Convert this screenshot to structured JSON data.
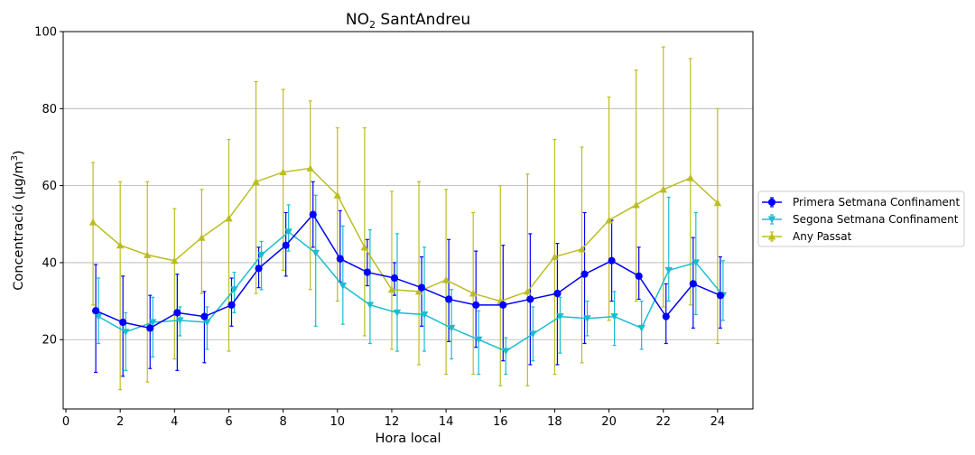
{
  "chart_data": {
    "type": "line",
    "title": "NO",
    "title_subscript": "2",
    "title_suffix": " SantAndreu",
    "xlabel": "Hora local",
    "ylabel": "Concentració (µg/m",
    "ylabel_superscript": "3",
    "ylabel_suffix": ")",
    "xlim": [
      -0.1,
      25.3
    ],
    "ylim": [
      2,
      100
    ],
    "xticks": [
      0,
      2,
      4,
      6,
      8,
      10,
      12,
      14,
      16,
      18,
      20,
      22,
      24
    ],
    "xtick_labels": [
      "0",
      "2",
      "4",
      "6",
      "8",
      "10",
      "12",
      "14",
      "16",
      "18",
      "20",
      "22",
      "24"
    ],
    "yticks": [
      20,
      40,
      60,
      80,
      100
    ],
    "ytick_labels": [
      "20",
      "40",
      "60",
      "80",
      "100"
    ],
    "grid": "horizontal",
    "legend_position": "outside-right",
    "x": [
      1,
      2,
      3,
      4,
      5,
      6,
      7,
      8,
      9,
      10,
      11,
      12,
      13,
      14,
      15,
      16,
      17,
      18,
      19,
      20,
      21,
      22,
      23,
      24
    ],
    "series": [
      {
        "name": "Primera Setmana Confinament",
        "color": "#0000ff",
        "marker": "circle",
        "x_offset": 0.1,
        "values": [
          27.5,
          24.5,
          23,
          27,
          26,
          29,
          38.5,
          44.5,
          52.5,
          41,
          37.5,
          36,
          33.5,
          30.5,
          29,
          29,
          30.5,
          32,
          37,
          40.5,
          36.5,
          26,
          34.5,
          31.5
        ],
        "err_low": [
          11.5,
          10.5,
          12.5,
          12,
          14,
          23.5,
          33.5,
          36.5,
          44,
          35,
          34,
          31.5,
          23.5,
          19.5,
          18,
          14.5,
          13.5,
          13.5,
          19,
          30,
          30.5,
          19,
          23,
          23
        ],
        "err_high": [
          39.5,
          36.5,
          31.5,
          37,
          32.5,
          36,
          44,
          53,
          61,
          53.5,
          46,
          40,
          41.5,
          46,
          43,
          44.5,
          47.5,
          45,
          53,
          51,
          44,
          34.5,
          46.5,
          41.5
        ]
      },
      {
        "name": "Segona Setmana Confinament",
        "color": "#17becf",
        "marker": "triangle-down",
        "x_offset": 0.2,
        "values": [
          26,
          22,
          24.5,
          25,
          24.5,
          33,
          42,
          48,
          42.5,
          34,
          29,
          27,
          26.5,
          23,
          20,
          17,
          21.5,
          26,
          25.5,
          26,
          23,
          38,
          40,
          31.5
        ],
        "err_low": [
          19,
          12,
          15.5,
          21,
          17.5,
          27,
          33,
          43,
          23.5,
          24,
          19,
          17,
          17,
          15,
          11,
          11,
          14.5,
          16.5,
          21,
          18.5,
          17.5,
          30,
          26.5,
          25
        ],
        "err_high": [
          36,
          27,
          31,
          28.5,
          28.5,
          37.5,
          45.5,
          55,
          57.5,
          49.5,
          48.5,
          47.5,
          44,
          33,
          27.5,
          20.5,
          28.5,
          31,
          30,
          32.5,
          30,
          57,
          53,
          40.5
        ]
      },
      {
        "name": "Any Passat",
        "color": "#bcbd22",
        "marker": "triangle-up",
        "x_offset": 0,
        "values": [
          50.5,
          44.5,
          42,
          40.5,
          46.5,
          51.5,
          61,
          63.5,
          64.5,
          57.5,
          44,
          33,
          32.5,
          35.5,
          32,
          30,
          32.5,
          41.5,
          43.5,
          51,
          55,
          59,
          62,
          55.5
        ],
        "err_low": [
          29,
          7,
          9,
          15,
          32,
          17,
          32,
          38,
          33,
          30,
          21,
          17.5,
          13.5,
          11,
          11,
          8,
          8,
          11,
          14,
          25,
          30,
          28.5,
          29,
          19
        ],
        "err_high": [
          66,
          61,
          61,
          54,
          59,
          72,
          87,
          85,
          82,
          75,
          75,
          58.5,
          61,
          59,
          53,
          60,
          63,
          72,
          70,
          83,
          90,
          96,
          93,
          80
        ]
      }
    ]
  }
}
